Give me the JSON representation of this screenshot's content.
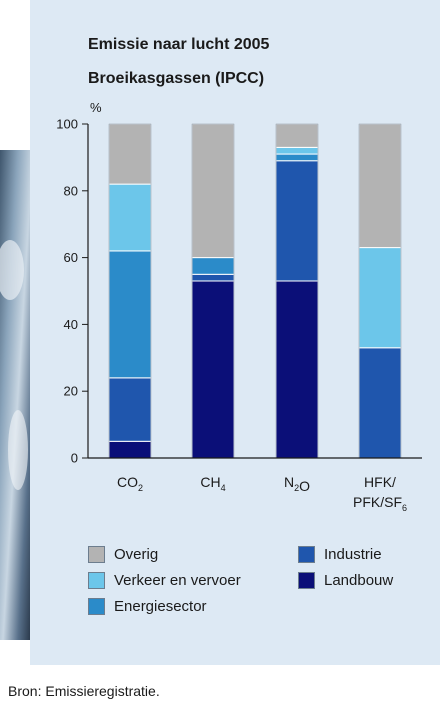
{
  "chart_data": {
    "type": "bar",
    "stacked": true,
    "title": "Emissie naar lucht 2005",
    "subtitle": "Broeikasgassen (IPCC)",
    "ylabel": "%",
    "ylim": [
      0,
      100
    ],
    "yticks": [
      0,
      20,
      40,
      60,
      80,
      100
    ],
    "categories": [
      {
        "base": "CO",
        "sub": "2",
        "line2": ""
      },
      {
        "base": "CH",
        "sub": "4",
        "line2": ""
      },
      {
        "base": "N",
        "sub": "2",
        "base2": "O",
        "line2": ""
      },
      {
        "base": "HFK/",
        "sub": "",
        "line2": "PFK/SF",
        "sub2": "6"
      }
    ],
    "series": [
      {
        "name": "Landbouw",
        "color": "#0b0f78",
        "values": [
          5,
          53,
          53,
          0
        ]
      },
      {
        "name": "Industrie",
        "color": "#1f56ad",
        "values": [
          19,
          2,
          36,
          33
        ]
      },
      {
        "name": "Energiesector",
        "color": "#2b8bc9",
        "values": [
          38,
          5,
          2,
          0
        ]
      },
      {
        "name": "Verkeer en vervoer",
        "color": "#6cc6ea",
        "values": [
          20,
          0,
          2,
          30
        ]
      },
      {
        "name": "Overig",
        "color": "#b3b3b3",
        "values": [
          18,
          40,
          7,
          37
        ]
      }
    ],
    "legend_order": [
      "Overig",
      "Verkeer en vervoer",
      "Energiesector",
      "Industrie",
      "Landbouw"
    ],
    "legend_placement": "bottom",
    "grid": false
  },
  "source": "Bron: Emissieregistratie."
}
